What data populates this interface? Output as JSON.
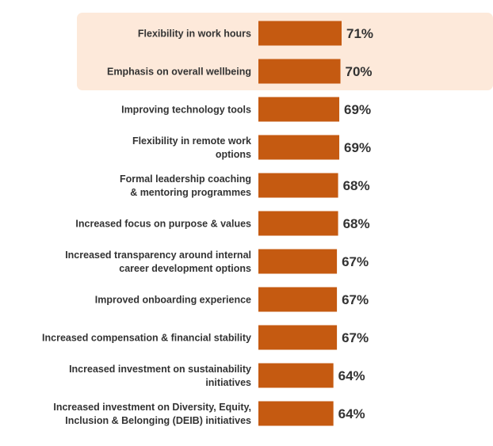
{
  "chart_data": {
    "type": "bar",
    "orientation": "horizontal",
    "categories": [
      [
        "Flexibility in work hours"
      ],
      [
        "Emphasis on overall wellbeing"
      ],
      [
        "Improving technology tools"
      ],
      [
        "Flexibility in remote work",
        "options"
      ],
      [
        "Formal leadership coaching",
        "& mentoring programmes"
      ],
      [
        "Increased focus on purpose & values"
      ],
      [
        "Increased transparency around internal",
        "career development options"
      ],
      [
        "Improved onboarding experience"
      ],
      [
        "Increased compensation & financial stability"
      ],
      [
        "Increased investment on sustainability",
        "initiatives"
      ],
      [
        "Increased investment on Diversity, Equity,",
        "Inclusion & Belonging (DEIB) initiatives"
      ]
    ],
    "values": [
      71,
      70,
      69,
      69,
      68,
      68,
      67,
      67,
      67,
      64,
      64
    ],
    "value_labels": [
      "71%",
      "70%",
      "69%",
      "69%",
      "68%",
      "68%",
      "67%",
      "67%",
      "67%",
      "64%",
      "64%"
    ],
    "highlighted_count": 2,
    "colors": {
      "bar": "#c55a11",
      "highlight_bg": "#fde9da",
      "text": "#333333"
    }
  }
}
